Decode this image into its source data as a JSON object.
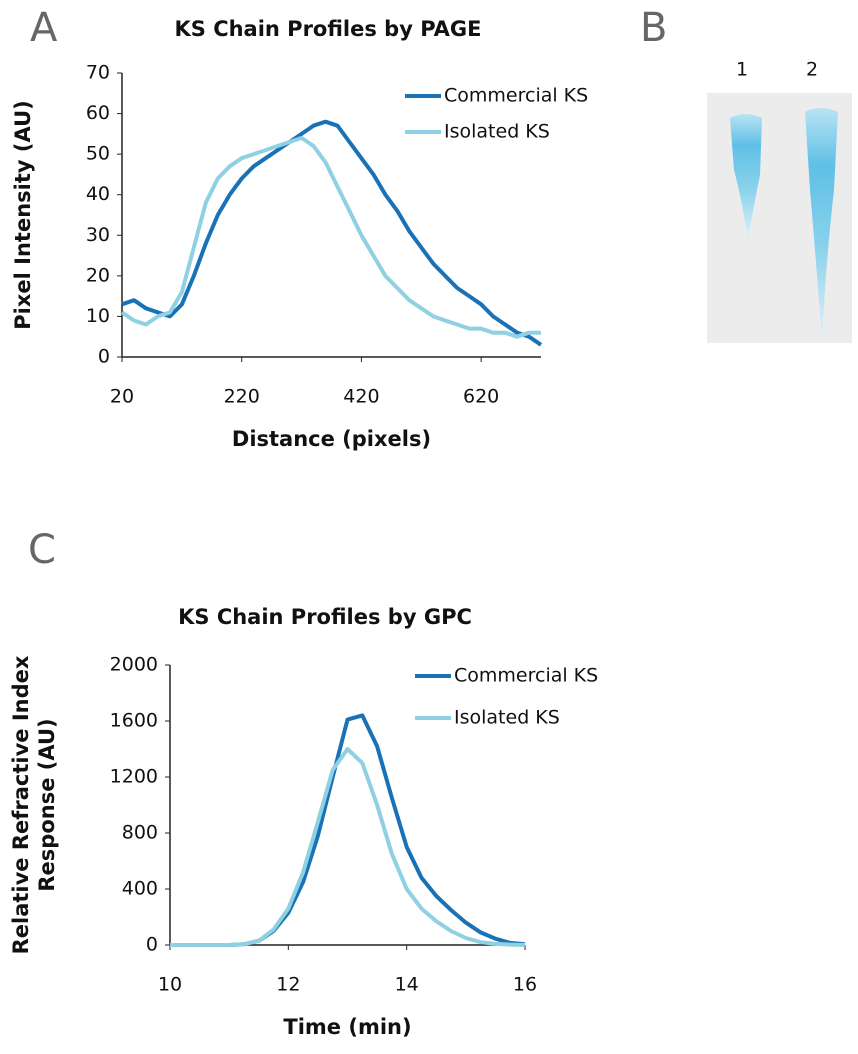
{
  "chart_data": [
    {
      "type": "line",
      "panel": "A",
      "title": "KS Chain Profiles by PAGE",
      "xlabel": "Distance (pixels)",
      "ylabel": [
        "Pixel Intensity (AU)"
      ],
      "x": [
        20,
        40,
        60,
        80,
        100,
        120,
        140,
        160,
        180,
        200,
        220,
        240,
        260,
        280,
        300,
        320,
        340,
        360,
        380,
        400,
        420,
        440,
        460,
        480,
        500,
        520,
        540,
        560,
        580,
        600,
        620,
        640,
        660,
        680,
        700,
        720
      ],
      "series": [
        {
          "name": "Commercial KS",
          "color": "#1a72b6",
          "values": [
            13,
            14,
            12,
            11,
            10,
            13,
            20,
            28,
            35,
            40,
            44,
            47,
            49,
            51,
            53,
            55,
            57,
            58,
            57,
            53,
            49,
            45,
            40,
            36,
            31,
            27,
            23,
            20,
            17,
            15,
            13,
            10,
            8,
            6,
            5,
            3
          ]
        },
        {
          "name": "Isolated KS",
          "color": "#8fd0e2",
          "values": [
            11,
            9,
            8,
            10,
            11,
            16,
            27,
            38,
            44,
            47,
            49,
            50,
            51,
            52,
            53,
            54,
            52,
            48,
            42,
            36,
            30,
            25,
            20,
            17,
            14,
            12,
            10,
            9,
            8,
            7,
            7,
            6,
            6,
            5,
            6,
            6
          ]
        }
      ],
      "xlim": [
        20,
        720
      ],
      "xticks": [
        20,
        220,
        420,
        620
      ],
      "ylim": [
        0,
        70
      ],
      "yticks": [
        0,
        10,
        20,
        30,
        40,
        50,
        60,
        70
      ]
    },
    {
      "type": "line",
      "panel": "C",
      "title": "KS Chain Profiles by GPC",
      "xlabel": "Time (min)",
      "ylabel": [
        "Relative Refractive Index",
        "Response (AU)"
      ],
      "x": [
        10,
        10.25,
        10.5,
        10.75,
        11,
        11.25,
        11.5,
        11.75,
        12,
        12.25,
        12.5,
        12.75,
        13,
        13.25,
        13.5,
        13.75,
        14,
        14.25,
        14.5,
        14.75,
        15,
        15.25,
        15.5,
        15.75,
        16
      ],
      "series": [
        {
          "name": "Commercial KS",
          "color": "#1a72b6",
          "values": [
            0,
            0,
            0,
            0,
            0,
            5,
            30,
            100,
            230,
            450,
            780,
            1200,
            1610,
            1640,
            1420,
            1050,
            700,
            480,
            350,
            250,
            160,
            90,
            45,
            15,
            5
          ]
        },
        {
          "name": "Isolated KS",
          "color": "#8fd0e2",
          "values": [
            0,
            0,
            0,
            0,
            0,
            5,
            30,
            110,
            260,
            520,
            880,
            1250,
            1400,
            1300,
            1000,
            650,
            400,
            260,
            170,
            100,
            50,
            20,
            8,
            3,
            0
          ]
        }
      ],
      "xlim": [
        10,
        16
      ],
      "xticks": [
        10,
        12,
        14,
        16
      ],
      "ylim": [
        0,
        2000
      ],
      "yticks": [
        0,
        400,
        800,
        1200,
        1600,
        2000
      ]
    }
  ],
  "gel": {
    "panel": "B",
    "lanes": [
      "1",
      "2"
    ]
  }
}
